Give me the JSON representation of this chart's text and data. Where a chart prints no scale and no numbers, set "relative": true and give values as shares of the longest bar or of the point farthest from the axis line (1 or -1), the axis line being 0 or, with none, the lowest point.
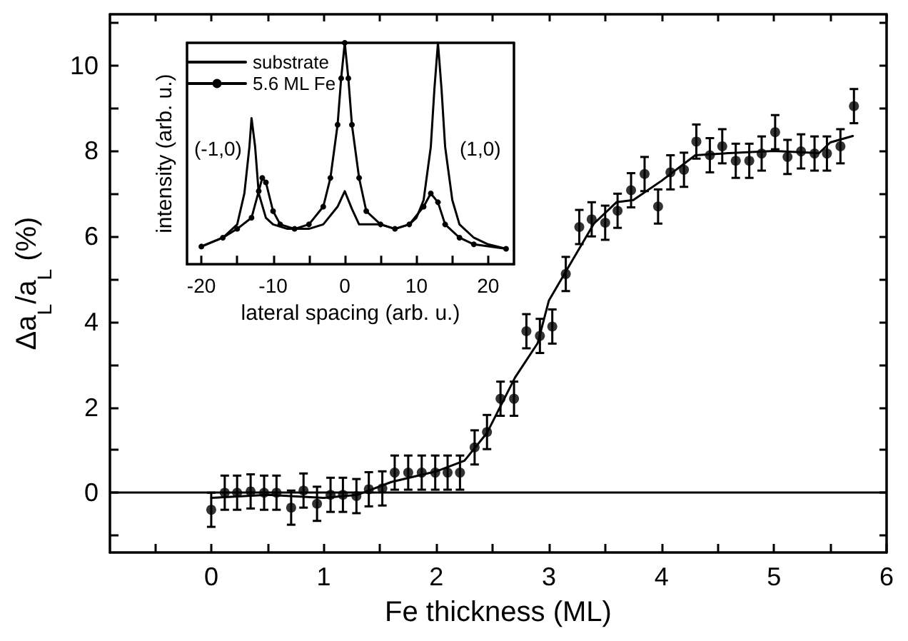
{
  "chart_data": [
    {
      "type": "scatter",
      "xlabel": "Fe thickness (ML)",
      "ylabel": "Δa$_{L}$/a$_{L}$ (%)",
      "xlim": [
        -0.9,
        6
      ],
      "xticks": [
        0,
        1,
        2,
        3,
        4,
        5,
        6,
        {
          "value": -0.5,
          "label": null
        },
        {
          "value": 0.5,
          "label": null
        },
        {
          "value": 1.5,
          "label": null
        },
        {
          "value": 2.5,
          "label": null
        },
        {
          "value": 3.5,
          "label": null
        },
        {
          "value": 4.5,
          "label": null
        },
        {
          "value": 5.5,
          "label": null
        }
      ],
      "ylim": [
        -1.4,
        11.2
      ],
      "yticks": [
        0,
        2,
        4,
        6,
        8,
        10,
        {
          "value": -1,
          "label": null
        },
        {
          "value": 1,
          "label": null
        },
        {
          "value": 3,
          "label": null
        },
        {
          "value": 5,
          "label": null
        },
        {
          "value": 7,
          "label": null
        },
        {
          "value": 9,
          "label": null
        },
        {
          "value": 11,
          "label": null
        }
      ],
      "grid": false,
      "legend": false,
      "marker": "circle",
      "ref_lines": [
        {
          "axis": "y",
          "value": 0,
          "color": "#000000"
        }
      ],
      "series": [
        {
          "color": "#000000",
          "x": [
            0,
            0.12,
            0.23,
            0.35,
            0.47,
            0.58,
            0.71,
            0.82,
            0.94,
            1.06,
            1.17,
            1.29,
            1.4,
            1.52,
            1.63,
            1.75,
            1.87,
            1.99,
            2.1,
            2.21,
            2.34,
            2.45,
            2.57,
            2.69,
            2.8,
            2.92,
            3.03,
            3.15,
            3.27,
            3.38,
            3.5,
            3.61,
            3.73,
            3.85,
            3.97,
            4.08,
            4.2,
            4.31,
            4.43,
            4.54,
            4.66,
            4.78,
            4.89,
            5.01,
            5.12,
            5.24,
            5.36,
            5.47,
            5.59,
            5.71
          ],
          "values": [
            -0.4,
            0,
            0,
            0.03,
            0,
            0,
            -0.35,
            0.05,
            -0.26,
            -0.05,
            -0.05,
            -0.08,
            0.08,
            0.1,
            0.47,
            0.47,
            0.47,
            0.47,
            0.47,
            0.47,
            1.06,
            1.42,
            2.2,
            2.2,
            3.78,
            3.67,
            3.89,
            5.12,
            6.22,
            6.4,
            6.32,
            6.6,
            7.08,
            7.46,
            6.7,
            7.5,
            7.56,
            8.22,
            7.9,
            8.11,
            7.77,
            7.77,
            7.94,
            8.44,
            7.86,
            7.99,
            7.94,
            7.94,
            8.11,
            9.05
          ],
          "errors": [
            0.4,
            0.4,
            0.4,
            0.4,
            0.4,
            0.4,
            0.4,
            0.4,
            0.4,
            0.4,
            0.4,
            0.4,
            0.4,
            0.4,
            0.4,
            0.4,
            0.4,
            0.4,
            0.4,
            0.4,
            0.4,
            0.4,
            0.4,
            0.4,
            0.4,
            0.4,
            0.4,
            0.4,
            0.4,
            0.4,
            0.4,
            0.4,
            0.4,
            0.4,
            0.4,
            0.4,
            0.4,
            0.4,
            0.4,
            0.4,
            0.4,
            0.4,
            0.4,
            0.4,
            0.4,
            0.4,
            0.4,
            0.4,
            0.4,
            0.4
          ]
        },
        {
          "type": "line",
          "color": "#000000",
          "marker": "none",
          "line_style": "solid",
          "x": [
            0,
            0.5,
            1,
            1.3,
            1.6,
            2,
            2.25,
            2.45,
            2.7,
            2.9,
            3,
            3.2,
            3.4,
            3.6,
            3.75,
            4,
            4.3,
            4.6,
            5,
            5.4,
            5.5,
            5.7
          ],
          "values": [
            -0.12,
            -0.05,
            -0.12,
            -0.05,
            0.25,
            0.5,
            0.75,
            1.4,
            2.7,
            3.5,
            4.5,
            5.4,
            6.3,
            6.8,
            6.85,
            7.3,
            7.9,
            7.95,
            8,
            7.95,
            8.2,
            8.35
          ]
        }
      ]
    },
    {
      "type": "line",
      "relative": true,
      "xlabel": "lateral spacing (arb. u.)",
      "ylabel": "intensity (arb. u.)",
      "xlim": [
        -22,
        23.6
      ],
      "xticks": [
        -20,
        -10,
        0,
        10,
        20,
        {
          "value": -15,
          "label": null
        },
        {
          "value": -5,
          "label": null
        },
        {
          "value": 5,
          "label": null
        },
        {
          "value": 15,
          "label": null
        }
      ],
      "grid": false,
      "legend": "top left",
      "tick_labels": "x",
      "annotations": [
        "(-1,0)",
        "(1,0)"
      ],
      "series": [
        {
          "name": "substrate",
          "color": "#000000",
          "marker": "none",
          "x": [
            -20,
            -17,
            -15,
            -14,
            -13.3,
            -13,
            -12.5,
            -12,
            -11,
            -10,
            -8,
            -5,
            -3,
            -1,
            0,
            1,
            2,
            5,
            7,
            9,
            10,
            11,
            12,
            12.5,
            13,
            13.5,
            14,
            15,
            16,
            18,
            20,
            22.5
          ],
          "values": [
            0.08,
            0.12,
            0.18,
            0.32,
            0.53,
            0.66,
            0.53,
            0.32,
            0.21,
            0.18,
            0.16,
            0.16,
            0.18,
            0.26,
            0.33,
            0.25,
            0.18,
            0.18,
            0.16,
            0.18,
            0.21,
            0.29,
            0.53,
            0.79,
            1,
            0.79,
            0.53,
            0.29,
            0.18,
            0.12,
            0.09,
            0.07
          ]
        },
        {
          "name": "5.6 ML Fe",
          "color": "#000000",
          "marker": "circle",
          "x": [
            -20,
            -17,
            -15,
            -13,
            -12,
            -11.5,
            -11,
            -10,
            -9,
            -7,
            -5,
            -3,
            -2,
            -1,
            -0.5,
            0,
            0.5,
            1,
            2,
            3,
            5,
            7,
            9,
            11,
            12,
            13,
            14,
            16,
            18,
            22.5
          ],
          "values": [
            0.08,
            0.12,
            0.16,
            0.21,
            0.33,
            0.39,
            0.37,
            0.24,
            0.18,
            0.16,
            0.18,
            0.26,
            0.39,
            0.63,
            0.84,
            1,
            0.84,
            0.63,
            0.39,
            0.24,
            0.18,
            0.16,
            0.18,
            0.26,
            0.32,
            0.28,
            0.18,
            0.12,
            0.09,
            0.07
          ]
        }
      ]
    }
  ]
}
